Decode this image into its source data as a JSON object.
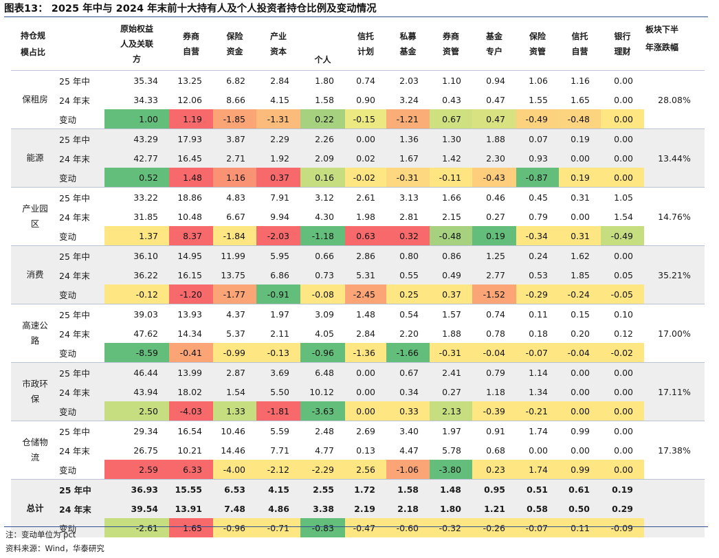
{
  "title": "图表13：  2025 年中与 2024 年末前十大持有人及个人投资者持仓比例及变动情况",
  "headers": {
    "group": "持仓规\n模占比",
    "period": "",
    "cols": [
      "原始权益\n人及关联\n方",
      "券商\n自营",
      "保险\n资金",
      "产业\n资本",
      "个人",
      "信托\n计划",
      "私募\n基金",
      "券商\n资管",
      "基金\n专户",
      "保险\n资管",
      "信托\n自营",
      "银行\n理财"
    ],
    "change_pct": "板块下半\n年涨跌幅"
  },
  "sectors": [
    {
      "name": "保租房",
      "change_pct": "28.08%",
      "shaded": false,
      "rows": [
        {
          "label": "25 年中",
          "values": [
            "35.34",
            "13.25",
            "6.82",
            "2.84",
            "1.80",
            "0.74",
            "2.03",
            "1.10",
            "0.94",
            "1.06",
            "1.16",
            "0.00"
          ]
        },
        {
          "label": "24 年末",
          "values": [
            "34.33",
            "12.06",
            "8.66",
            "4.15",
            "1.58",
            "0.90",
            "3.24",
            "0.43",
            "0.47",
            "1.55",
            "1.65",
            "0.00"
          ]
        },
        {
          "label": "变动",
          "values": [
            "1.00",
            "1.19",
            "-1.85",
            "-1.31",
            "0.22",
            "-0.15",
            "-1.21",
            "0.67",
            "0.47",
            "-0.49",
            "-0.48",
            "0.00"
          ],
          "colors": [
            "#63be7b",
            "#f8696b",
            "#fba476",
            "#fbbc7b",
            "#a6d17e",
            "#ede982",
            "#fbad78",
            "#cee07f",
            "#d8e281",
            "#fcd27f",
            "#fcd37f",
            "#fee683"
          ]
        }
      ]
    },
    {
      "name": "能源",
      "change_pct": "13.44%",
      "shaded": true,
      "rows": [
        {
          "label": "25 年中",
          "values": [
            "43.29",
            "17.93",
            "3.87",
            "2.29",
            "2.26",
            "0.00",
            "1.36",
            "1.30",
            "1.88",
            "0.07",
            "0.19",
            "0.00"
          ]
        },
        {
          "label": "24 年末",
          "values": [
            "42.77",
            "16.45",
            "2.71",
            "1.92",
            "2.09",
            "0.02",
            "1.67",
            "1.42",
            "2.30",
            "0.93",
            "0.00",
            "0.00"
          ]
        },
        {
          "label": "变动",
          "values": [
            "0.52",
            "1.48",
            "1.16",
            "0.37",
            "0.16",
            "-0.02",
            "-0.31",
            "-0.11",
            "-0.43",
            "-0.87",
            "0.19",
            "0.00"
          ],
          "colors": [
            "#63be7b",
            "#f8696b",
            "#fa9373",
            "#f8696b",
            "#c6dd80",
            "#fee683",
            "#fdd881",
            "#fee582",
            "#ffce7d",
            "#63be7b",
            "#fee683",
            "#fee683"
          ]
        }
      ]
    },
    {
      "name": "产业园\n区",
      "change_pct": "14.76%",
      "shaded": false,
      "rows": [
        {
          "label": "25 年中",
          "values": [
            "33.22",
            "18.86",
            "4.83",
            "7.91",
            "3.12",
            "2.61",
            "3.13",
            "1.66",
            "0.46",
            "0.45",
            "0.31",
            "1.05"
          ]
        },
        {
          "label": "24 年末",
          "values": [
            "31.85",
            "10.48",
            "6.67",
            "9.94",
            "4.30",
            "1.98",
            "2.81",
            "2.15",
            "0.27",
            "0.79",
            "0.00",
            "1.54"
          ]
        },
        {
          "label": "变动",
          "values": [
            "1.37",
            "8.37",
            "-1.84",
            "-2.03",
            "-1.18",
            "0.63",
            "0.32",
            "-0.48",
            "0.19",
            "-0.34",
            "0.31",
            "-0.49"
          ],
          "colors": [
            "#fee683",
            "#f8696b",
            "#fee683",
            "#f8696b",
            "#63be7b",
            "#f8696b",
            "#f8696b",
            "#a6d17e",
            "#63be7b",
            "#fee683",
            "#fee683",
            "#c6dd80"
          ]
        }
      ]
    },
    {
      "name": "消费",
      "change_pct": "35.21%",
      "shaded": true,
      "rows": [
        {
          "label": "25 年中",
          "values": [
            "36.10",
            "14.95",
            "11.99",
            "5.95",
            "0.66",
            "2.86",
            "0.80",
            "0.86",
            "1.25",
            "0.24",
            "1.62",
            "0.00"
          ]
        },
        {
          "label": "24 年末",
          "values": [
            "36.22",
            "16.15",
            "13.75",
            "6.86",
            "0.73",
            "5.31",
            "0.55",
            "0.49",
            "2.77",
            "0.53",
            "1.85",
            "0.05"
          ]
        },
        {
          "label": "变动",
          "values": [
            "-0.12",
            "-1.20",
            "-1.77",
            "-0.91",
            "-0.08",
            "-2.45",
            "0.25",
            "0.37",
            "-1.52",
            "-0.29",
            "-0.24",
            "-0.05"
          ],
          "colors": [
            "#fee683",
            "#f8696b",
            "#fba476",
            "#63be7b",
            "#fee683",
            "#fba476",
            "#fee683",
            "#fee683",
            "#fba476",
            "#fee683",
            "#fee683",
            "#fee683"
          ]
        }
      ]
    },
    {
      "name": "高速公\n路",
      "change_pct": "17.00%",
      "shaded": false,
      "rows": [
        {
          "label": "25 年中",
          "values": [
            "39.03",
            "13.93",
            "4.37",
            "1.97",
            "3.09",
            "1.48",
            "0.54",
            "1.57",
            "0.74",
            "0.11",
            "0.15",
            "0.10"
          ]
        },
        {
          "label": "24 年末",
          "values": [
            "47.62",
            "14.34",
            "5.37",
            "2.11",
            "4.05",
            "2.84",
            "2.20",
            "1.88",
            "0.78",
            "0.18",
            "0.20",
            "0.12"
          ]
        },
        {
          "label": "变动",
          "values": [
            "-8.59",
            "-0.41",
            "-0.99",
            "-0.13",
            "-0.96",
            "-1.36",
            "-1.66",
            "-0.31",
            "-0.04",
            "-0.07",
            "-0.04",
            "-0.02"
          ],
          "colors": [
            "#63be7b",
            "#fba476",
            "#fee683",
            "#fee683",
            "#63be7b",
            "#fee683",
            "#63be7b",
            "#fee683",
            "#fee683",
            "#fee683",
            "#fee683",
            "#fee683"
          ]
        }
      ]
    },
    {
      "name": "市政环\n保",
      "change_pct": "17.11%",
      "shaded": true,
      "rows": [
        {
          "label": "25 年中",
          "values": [
            "46.44",
            "13.99",
            "2.87",
            "3.69",
            "6.48",
            "0.00",
            "0.67",
            "2.41",
            "0.79",
            "1.14",
            "0.00",
            "0.00"
          ]
        },
        {
          "label": "24 年末",
          "values": [
            "43.94",
            "18.02",
            "1.54",
            "5.50",
            "10.12",
            "0.00",
            "0.34",
            "0.27",
            "1.18",
            "1.34",
            "0.00",
            "0.00"
          ]
        },
        {
          "label": "变动",
          "values": [
            "2.50",
            "-4.03",
            "1.33",
            "-1.81",
            "-3.63",
            "0.00",
            "0.33",
            "2.13",
            "-0.39",
            "-0.21",
            "0.00",
            "0.00"
          ],
          "colors": [
            "#c6dd80",
            "#f8696b",
            "#c6dd80",
            "#f8696b",
            "#63be7b",
            "#fee683",
            "#fee683",
            "#c6dd80",
            "#fee683",
            "#fee683",
            "#fee683",
            "#fee683"
          ]
        }
      ]
    },
    {
      "name": "仓储物\n流",
      "change_pct": "17.38%",
      "shaded": false,
      "rows": [
        {
          "label": "25 年中",
          "values": [
            "29.34",
            "16.54",
            "10.46",
            "5.59",
            "2.48",
            "2.69",
            "3.40",
            "1.97",
            "0.91",
            "1.74",
            "0.99",
            "0.00"
          ]
        },
        {
          "label": "24 年末",
          "values": [
            "26.75",
            "10.21",
            "14.46",
            "7.71",
            "4.77",
            "0.13",
            "4.47",
            "5.78",
            "0.68",
            "0.00",
            "0.00",
            "0.00"
          ]
        },
        {
          "label": "变动",
          "values": [
            "2.59",
            "6.33",
            "-4.00",
            "-2.12",
            "-2.29",
            "2.56",
            "-1.06",
            "-3.80",
            "0.23",
            "1.74",
            "0.99",
            "0.00"
          ],
          "colors": [
            "#f8696b",
            "#f8696b",
            "#fee683",
            "#fee683",
            "#fee683",
            "#fee683",
            "#fba476",
            "#63be7b",
            "#fee683",
            "#fee683",
            "#fee683",
            "#fee683"
          ]
        }
      ]
    },
    {
      "name": "总计",
      "change_pct": "",
      "shaded": true,
      "total": true,
      "rows": [
        {
          "label": "25 年中",
          "values": [
            "36.93",
            "15.55",
            "6.53",
            "4.15",
            "2.55",
            "1.72",
            "1.58",
            "1.48",
            "0.95",
            "0.51",
            "0.61",
            "0.19"
          ]
        },
        {
          "label": "24 年末",
          "values": [
            "39.54",
            "13.91",
            "7.48",
            "4.86",
            "3.38",
            "2.19",
            "2.18",
            "1.80",
            "1.21",
            "0.58",
            "0.50",
            "0.29"
          ]
        },
        {
          "label": "变动",
          "values": [
            "-2.61",
            "1.65",
            "-0.96",
            "-0.71",
            "-0.83",
            "-0.47",
            "-0.60",
            "-0.32",
            "-0.26",
            "-0.07",
            "0.11",
            "-0.09"
          ],
          "colors": [
            "#c6dd80",
            "#f8696b",
            "#fee683",
            "#fee683",
            "#63be7b",
            "#fee683",
            "#fee683",
            "#fee683",
            "#fee683",
            "#fee683",
            "#fee683",
            "#fee683"
          ]
        }
      ]
    }
  ],
  "notes": {
    "unit": "注：变动单位为 pct",
    "source": "资料来源：Wind，华泰研究"
  }
}
